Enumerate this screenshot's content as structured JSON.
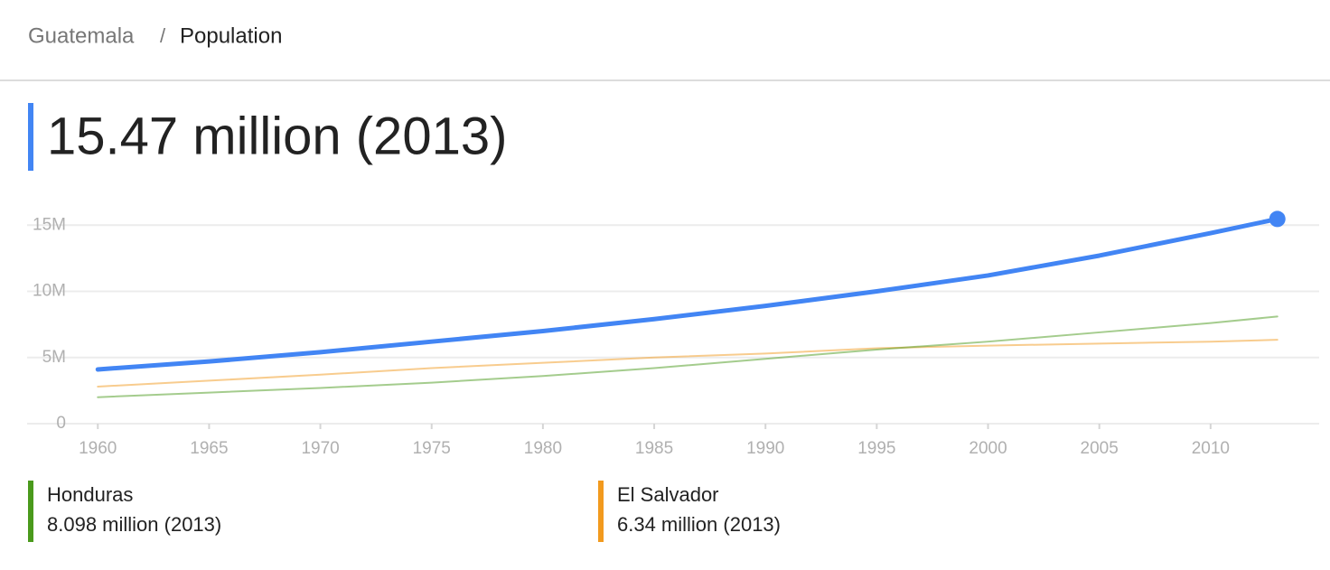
{
  "header": {
    "parent": "Guatemala",
    "separator": "/",
    "title": "Population"
  },
  "chart_data": {
    "type": "line",
    "headline": "15.47 million (2013)",
    "x": [
      1960,
      1965,
      1970,
      1975,
      1980,
      1985,
      1990,
      1995,
      2000,
      2005,
      2010,
      2013
    ],
    "series": [
      {
        "color": "#4285f4",
        "values": [
          4100000,
          4700000,
          5400000,
          6200000,
          7000000,
          7900000,
          8900000,
          10000000,
          11200000,
          12700000,
          14400000,
          15470000
        ]
      },
      {
        "name": "Honduras",
        "color": "#4a9a1c",
        "latest_label": "8.098 million (2013)",
        "values": [
          2000000,
          2350000,
          2700000,
          3100000,
          3600000,
          4200000,
          4900000,
          5600000,
          6200000,
          6900000,
          7600000,
          8098000
        ]
      },
      {
        "name": "El Salvador",
        "color": "#f29a1e",
        "latest_label": "6.34 million (2013)",
        "values": [
          2800000,
          3250000,
          3700000,
          4200000,
          4600000,
          5000000,
          5300000,
          5700000,
          5900000,
          6050000,
          6200000,
          6340000
        ]
      }
    ],
    "xlim": [
      1958,
      2015
    ],
    "xticks": [
      1960,
      1965,
      1970,
      1975,
      1980,
      1985,
      1990,
      1995,
      2000,
      2005,
      2010
    ],
    "ylim": [
      0,
      17000000
    ],
    "yticks": [
      0,
      {
        "value": 5000000,
        "label": "5M"
      },
      {
        "value": 10000000,
        "label": "10M"
      },
      {
        "value": 15000000,
        "label": "15M"
      }
    ],
    "grid": true
  }
}
